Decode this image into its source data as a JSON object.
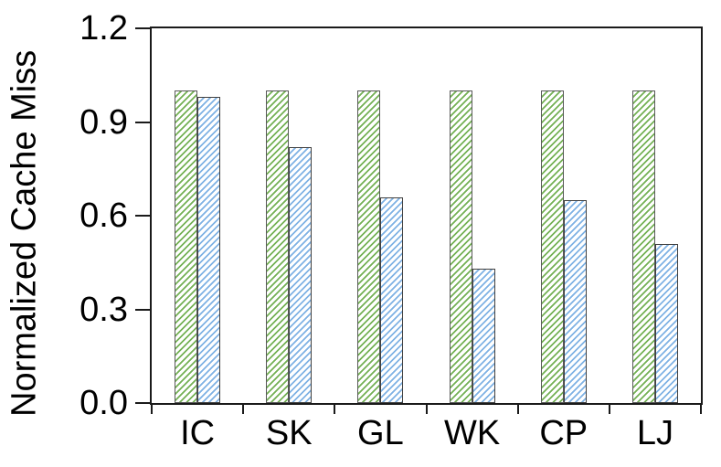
{
  "chart_data": {
    "type": "bar",
    "title": "",
    "xlabel": "",
    "ylabel": "Normalized Cache Miss",
    "categories": [
      "IC",
      "SK",
      "GL",
      "WK",
      "CP",
      "LJ"
    ],
    "series": [
      {
        "name": "green-hatched",
        "values": [
          1.0,
          1.0,
          1.0,
          1.0,
          1.0,
          1.0
        ],
        "stripe_color": "#74b155",
        "border_color": "#595959",
        "fill_style": "diagonal-hatch"
      },
      {
        "name": "blue-hatched",
        "values": [
          0.98,
          0.82,
          0.66,
          0.43,
          0.65,
          0.51
        ],
        "stripe_color": "#7fb2e4",
        "border_color": "#404040",
        "fill_style": "diagonal-hatch"
      }
    ],
    "ylim": [
      0,
      1.2
    ],
    "yticks": [
      0.0,
      0.3,
      0.6,
      0.9,
      1.2
    ],
    "ytick_labels": [
      "0.0",
      "0.3",
      "0.6",
      "0.9",
      "1.2"
    ],
    "grid": false,
    "legend_position": "none",
    "axis_color": "#1a1a1a",
    "text_color": "#000000",
    "plot_background": "#ffffff"
  }
}
